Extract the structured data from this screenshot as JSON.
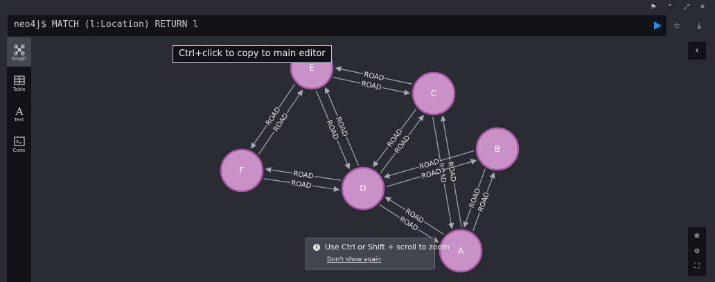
{
  "editor": {
    "prompt": "neo4j$ MATCH (l:Location) RETURN l"
  },
  "sidebar": {
    "items": [
      {
        "label": "Graph",
        "icon": "graph-icon"
      },
      {
        "label": "Table",
        "icon": "table-icon"
      },
      {
        "label": "Text",
        "icon": "text-icon"
      },
      {
        "label": "Code",
        "icon": "code-icon"
      }
    ]
  },
  "tooltip": "Ctrl+click to copy to main editor",
  "zoom_hint": {
    "message": "Use Ctrl or Shift + scroll to zoom",
    "link": "Don't show again"
  },
  "graph": {
    "nodes": [
      "A",
      "B",
      "C",
      "D",
      "E",
      "F"
    ],
    "relationship_type": "ROAD",
    "relationships": [
      [
        "E",
        "C"
      ],
      [
        "C",
        "E"
      ],
      [
        "E",
        "D"
      ],
      [
        "D",
        "E"
      ],
      [
        "E",
        "F"
      ],
      [
        "F",
        "E"
      ],
      [
        "F",
        "D"
      ],
      [
        "D",
        "F"
      ],
      [
        "C",
        "D"
      ],
      [
        "D",
        "C"
      ],
      [
        "C",
        "A"
      ],
      [
        "A",
        "C"
      ],
      [
        "B",
        "D"
      ],
      [
        "D",
        "B"
      ],
      [
        "B",
        "A"
      ],
      [
        "A",
        "B"
      ],
      [
        "D",
        "A"
      ],
      [
        "A",
        "D"
      ]
    ]
  },
  "colors": {
    "node_fill": "#c991c5",
    "node_stroke": "#a85aa4",
    "run_button": "#1e8cf0",
    "background": "#292c33"
  }
}
